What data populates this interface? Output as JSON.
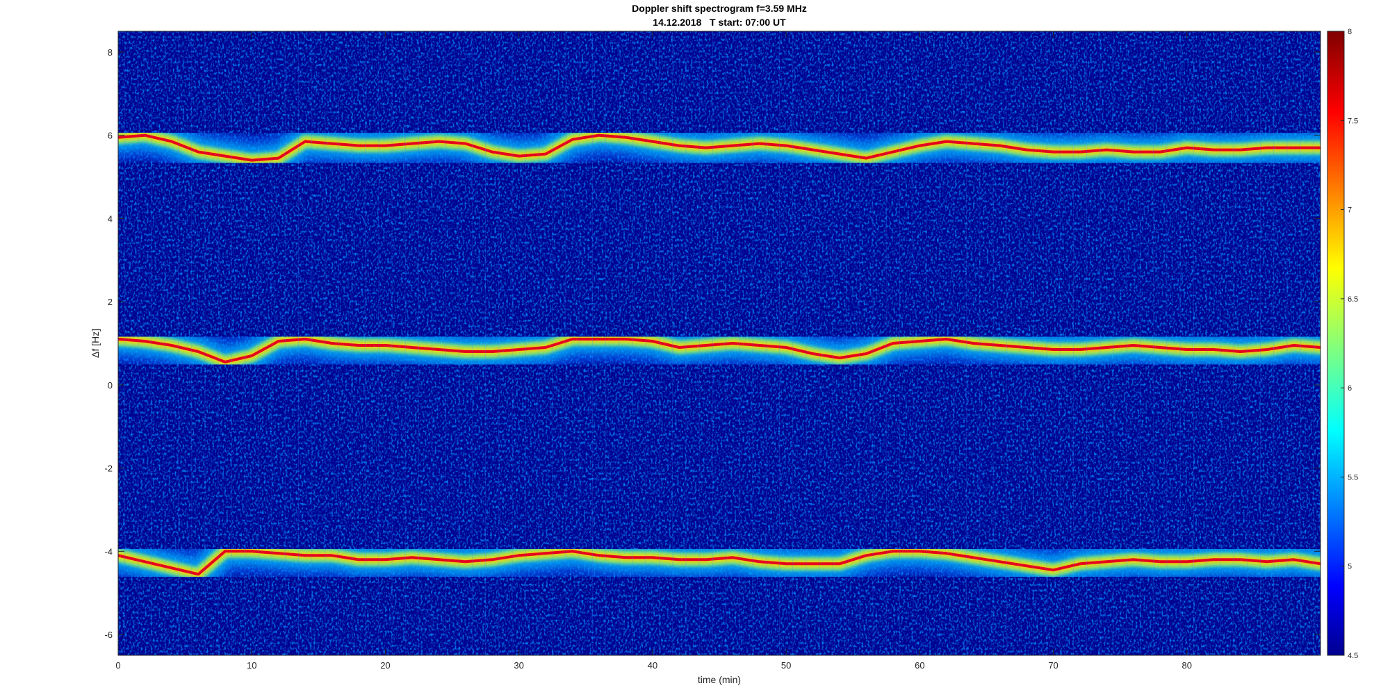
{
  "chart_data": {
    "type": "heatmap",
    "title": "Doppler shift spectrogram f=3.59 MHz",
    "subtitle": "14.12.2018   T start: 07:00 UT",
    "xlabel": "time (min)",
    "ylabel": "Δf [Hz]",
    "xlim": [
      0,
      90
    ],
    "ylim": [
      -6.5,
      8.5
    ],
    "xticks": [
      "0",
      "10",
      "20",
      "30",
      "40",
      "50",
      "60",
      "70",
      "80"
    ],
    "yticks": [
      "-6",
      "-4",
      "-2",
      "0",
      "2",
      "4",
      "6",
      "8"
    ],
    "colorbar": {
      "colormap": "jet",
      "range": [
        4.5,
        8
      ],
      "ticks": [
        "4.5",
        "5",
        "5.5",
        "6",
        "6.5",
        "7",
        "7.5",
        "8"
      ]
    },
    "series": [
      {
        "x": [
          0,
          2,
          4,
          6,
          8,
          10,
          12,
          14,
          16,
          18,
          20,
          22,
          24,
          26,
          28,
          30,
          32,
          34,
          36,
          38,
          40,
          42,
          44,
          46,
          48,
          50,
          52,
          54,
          56,
          58,
          60,
          62,
          64,
          66,
          68,
          70,
          72,
          74,
          76,
          78,
          80,
          82,
          84,
          86,
          88,
          90
        ],
        "y": [
          5.95,
          6.0,
          5.85,
          5.6,
          5.5,
          5.4,
          5.45,
          5.85,
          5.8,
          5.75,
          5.75,
          5.8,
          5.85,
          5.8,
          5.6,
          5.5,
          5.55,
          5.9,
          6.0,
          5.95,
          5.85,
          5.75,
          5.7,
          5.75,
          5.8,
          5.75,
          5.65,
          5.55,
          5.45,
          5.6,
          5.75,
          5.85,
          5.8,
          5.75,
          5.65,
          5.6,
          5.6,
          5.65,
          5.6,
          5.6,
          5.7,
          5.65,
          5.65,
          5.7,
          5.7,
          5.7
        ]
      },
      {
        "x": [
          0,
          2,
          4,
          6,
          8,
          10,
          12,
          14,
          16,
          18,
          20,
          22,
          24,
          26,
          28,
          30,
          32,
          34,
          36,
          38,
          40,
          42,
          44,
          46,
          48,
          50,
          52,
          54,
          56,
          58,
          60,
          62,
          64,
          66,
          68,
          70,
          72,
          74,
          76,
          78,
          80,
          82,
          84,
          86,
          88,
          90
        ],
        "y": [
          1.1,
          1.05,
          0.95,
          0.8,
          0.55,
          0.7,
          1.05,
          1.1,
          1.0,
          0.95,
          0.95,
          0.9,
          0.85,
          0.8,
          0.8,
          0.85,
          0.9,
          1.1,
          1.1,
          1.1,
          1.05,
          0.9,
          0.95,
          1.0,
          0.95,
          0.9,
          0.75,
          0.65,
          0.75,
          1.0,
          1.05,
          1.1,
          1.0,
          0.95,
          0.9,
          0.85,
          0.85,
          0.9,
          0.95,
          0.9,
          0.85,
          0.85,
          0.8,
          0.85,
          0.95,
          0.9
        ]
      },
      {
        "x": [
          0,
          2,
          4,
          6,
          8,
          10,
          12,
          14,
          16,
          18,
          20,
          22,
          24,
          26,
          28,
          30,
          32,
          34,
          36,
          38,
          40,
          42,
          44,
          46,
          48,
          50,
          52,
          54,
          56,
          58,
          60,
          62,
          64,
          66,
          68,
          70,
          72,
          74,
          76,
          78,
          80,
          82,
          84,
          86,
          88,
          90
        ],
        "y": [
          -4.1,
          -4.25,
          -4.4,
          -4.55,
          -4.0,
          -4.0,
          -4.05,
          -4.1,
          -4.1,
          -4.2,
          -4.2,
          -4.15,
          -4.2,
          -4.25,
          -4.2,
          -4.1,
          -4.05,
          -4.0,
          -4.1,
          -4.15,
          -4.15,
          -4.2,
          -4.2,
          -4.15,
          -4.25,
          -4.3,
          -4.3,
          -4.3,
          -4.1,
          -4.0,
          -4.0,
          -4.05,
          -4.15,
          -4.25,
          -4.35,
          -4.45,
          -4.3,
          -4.25,
          -4.2,
          -4.25,
          -4.25,
          -4.2,
          -4.2,
          -4.25,
          -4.2,
          -4.3
        ]
      }
    ]
  }
}
